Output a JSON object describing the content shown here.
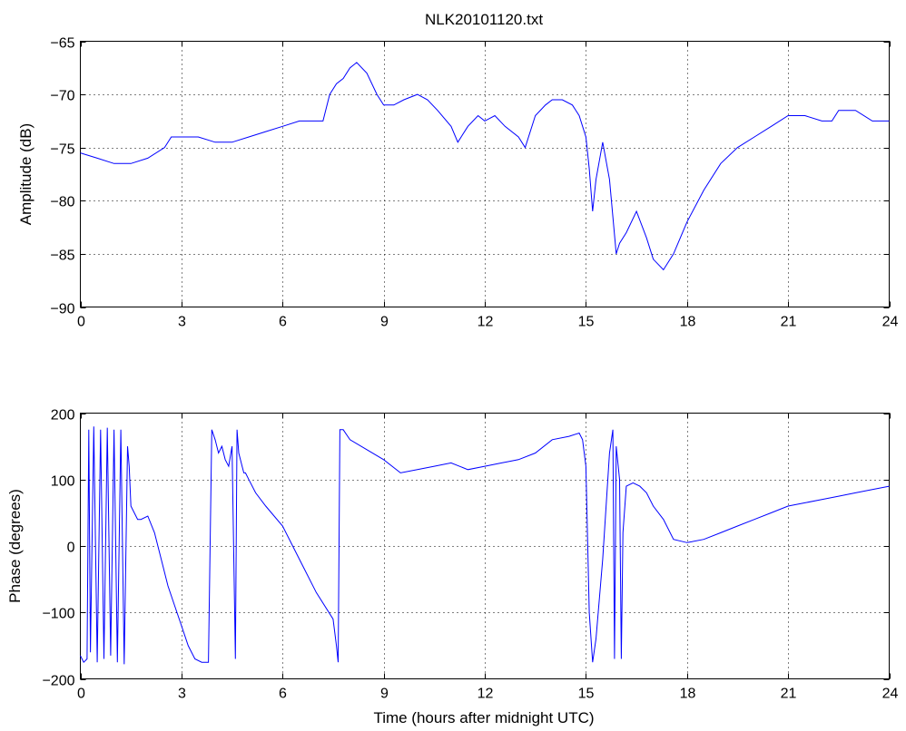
{
  "chart_data": [
    {
      "type": "line",
      "title": "NLK20101120.txt",
      "xlabel": "",
      "ylabel": "Amplitude (dB)",
      "xlim": [
        0,
        24
      ],
      "ylim": [
        -90,
        -65
      ],
      "xticks": [
        0,
        3,
        6,
        9,
        12,
        15,
        18,
        21,
        24
      ],
      "xtick_labels": [
        "0",
        "3",
        "6",
        "9",
        "12",
        "15",
        "18",
        "21",
        "24"
      ],
      "yticks": [
        -65,
        -70,
        -75,
        -80,
        -85,
        -90
      ],
      "ytick_labels": [
        "−65",
        "−70",
        "−75",
        "−80",
        "−85",
        "−90"
      ],
      "grid": true,
      "color": "#0000ff",
      "series": [
        {
          "x": [
            0,
            0.5,
            1,
            1.5,
            2,
            2.5,
            2.7,
            3,
            3.5,
            4,
            4.5,
            5,
            5.5,
            6,
            6.5,
            7,
            7.2,
            7.4,
            7.6,
            7.8,
            8,
            8.2,
            8.5,
            8.8,
            9,
            9.3,
            9.6,
            10,
            10.3,
            10.6,
            11,
            11.2,
            11.5,
            11.8,
            12,
            12.3,
            12.6,
            13,
            13.2,
            13.5,
            13.8,
            14,
            14.3,
            14.6,
            14.8,
            15,
            15.1,
            15.2,
            15.3,
            15.5,
            15.7,
            15.9,
            16,
            16.2,
            16.5,
            16.8,
            17,
            17.3,
            17.6,
            18,
            18.5,
            19,
            19.5,
            20,
            20.5,
            21,
            21.5,
            22,
            22.3,
            22.5,
            23,
            23.5,
            24
          ],
          "values": [
            -75.5,
            -76,
            -76.5,
            -76.5,
            -76,
            -75,
            -74,
            -74,
            -74,
            -74.5,
            -74.5,
            -74,
            -73.5,
            -73,
            -72.5,
            -72.5,
            -72.5,
            -70,
            -69,
            -68.5,
            -67.5,
            -67,
            -68,
            -70,
            -71,
            -71,
            -70.5,
            -70,
            -70.5,
            -71.5,
            -73,
            -74.5,
            -73,
            -72,
            -72.5,
            -72,
            -73,
            -74,
            -75,
            -72,
            -71,
            -70.5,
            -70.5,
            -71,
            -72,
            -74,
            -77,
            -81,
            -78,
            -74.5,
            -78,
            -85,
            -84,
            -83,
            -81,
            -83.5,
            -85.5,
            -86.5,
            -85,
            -82,
            -79,
            -76.5,
            -75,
            -74,
            -73,
            -72,
            -72,
            -72.5,
            -72.5,
            -71.5,
            -71.5,
            -72.5,
            -72.5
          ]
        }
      ]
    },
    {
      "type": "line",
      "title": "",
      "xlabel": "Time (hours after midnight UTC)",
      "ylabel": "Phase (degrees)",
      "xlim": [
        0,
        24
      ],
      "ylim": [
        -200,
        200
      ],
      "xticks": [
        0,
        3,
        6,
        9,
        12,
        15,
        18,
        21,
        24
      ],
      "xtick_labels": [
        "0",
        "3",
        "6",
        "9",
        "12",
        "15",
        "18",
        "21",
        "24"
      ],
      "yticks": [
        200,
        100,
        0,
        -100,
        -200
      ],
      "ytick_labels": [
        "200",
        "100",
        "0",
        "−100",
        "−200"
      ],
      "grid": true,
      "color": "#0000ff",
      "series": [
        {
          "x": [
            0,
            0.1,
            0.2,
            0.25,
            0.3,
            0.4,
            0.5,
            0.6,
            0.7,
            0.8,
            0.9,
            1.0,
            1.1,
            1.2,
            1.3,
            1.4,
            1.45,
            1.5,
            1.6,
            1.7,
            1.8,
            2.0,
            2.2,
            2.4,
            2.6,
            2.8,
            3.0,
            3.2,
            3.4,
            3.6,
            3.8,
            3.9,
            4.0,
            4.1,
            4.2,
            4.3,
            4.4,
            4.5,
            4.6,
            4.65,
            4.7,
            4.8,
            4.85,
            4.9,
            5.0,
            5.2,
            5.5,
            6.0,
            6.5,
            7.0,
            7.5,
            7.6,
            7.65,
            7.7,
            7.8,
            8.0,
            8.5,
            9.0,
            9.5,
            10.0,
            10.5,
            11.0,
            11.5,
            12.0,
            12.5,
            13.0,
            13.5,
            14.0,
            14.5,
            14.8,
            14.9,
            15.0,
            15.1,
            15.2,
            15.3,
            15.5,
            15.7,
            15.8,
            15.85,
            15.9,
            16.0,
            16.05,
            16.1,
            16.2,
            16.4,
            16.6,
            16.8,
            17.0,
            17.3,
            17.6,
            18.0,
            18.5,
            19.0,
            19.5,
            20.0,
            20.5,
            21.0,
            21.5,
            22.0,
            22.5,
            23.0,
            23.5,
            24.0
          ],
          "values": [
            -165,
            -175,
            -170,
            175,
            -160,
            180,
            -175,
            175,
            -170,
            178,
            -165,
            175,
            -175,
            175,
            -178,
            150,
            120,
            60,
            50,
            40,
            40,
            45,
            20,
            -20,
            -60,
            -90,
            -120,
            -150,
            -170,
            -175,
            -175,
            175,
            160,
            140,
            150,
            130,
            120,
            150,
            -170,
            175,
            140,
            120,
            110,
            110,
            100,
            80,
            60,
            30,
            -20,
            -70,
            -110,
            -150,
            -175,
            175,
            175,
            160,
            145,
            130,
            110,
            115,
            120,
            125,
            115,
            120,
            125,
            130,
            140,
            160,
            165,
            170,
            160,
            120,
            -100,
            -175,
            -140,
            -20,
            140,
            175,
            -170,
            150,
            100,
            -170,
            20,
            90,
            95,
            90,
            80,
            60,
            40,
            10,
            5,
            10,
            20,
            30,
            40,
            50,
            60,
            65,
            70,
            75,
            80,
            85,
            90
          ]
        }
      ]
    }
  ]
}
